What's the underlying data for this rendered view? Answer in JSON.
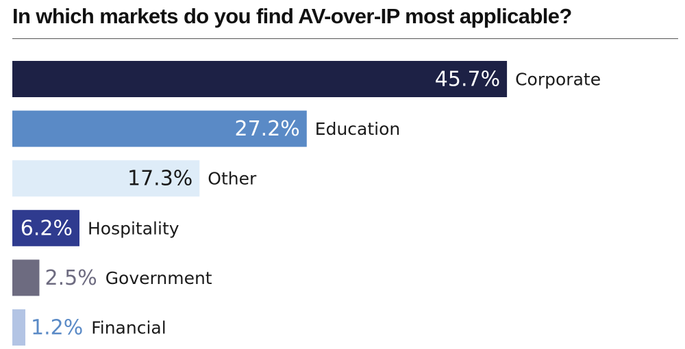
{
  "chart_data": {
    "type": "bar",
    "orientation": "horizontal",
    "title": "In which markets do you find AV-over-IP most applicable?",
    "xlabel": "",
    "ylabel": "",
    "unit": "%",
    "categories": [
      "Corporate",
      "Education",
      "Other",
      "Hospitality",
      "Government",
      "Financial"
    ],
    "values": [
      45.7,
      27.2,
      17.3,
      6.2,
      2.5,
      1.2
    ],
    "value_labels": [
      "45.7%",
      "27.2%",
      "17.3%",
      "6.2%",
      "2.5%",
      "1.2%"
    ],
    "bar_colors": [
      "#1d2145",
      "#5a8ac6",
      "#deecf8",
      "#2f3b8f",
      "#6d6b80",
      "#b3c4e4"
    ],
    "label_colors": [
      "#ffffff",
      "#ffffff",
      "#1a1a1a",
      "#ffffff",
      "#6d6b80",
      "#5a8ac6"
    ],
    "label_inside": [
      true,
      true,
      true,
      true,
      false,
      false
    ],
    "grid": false,
    "legend": "none"
  }
}
